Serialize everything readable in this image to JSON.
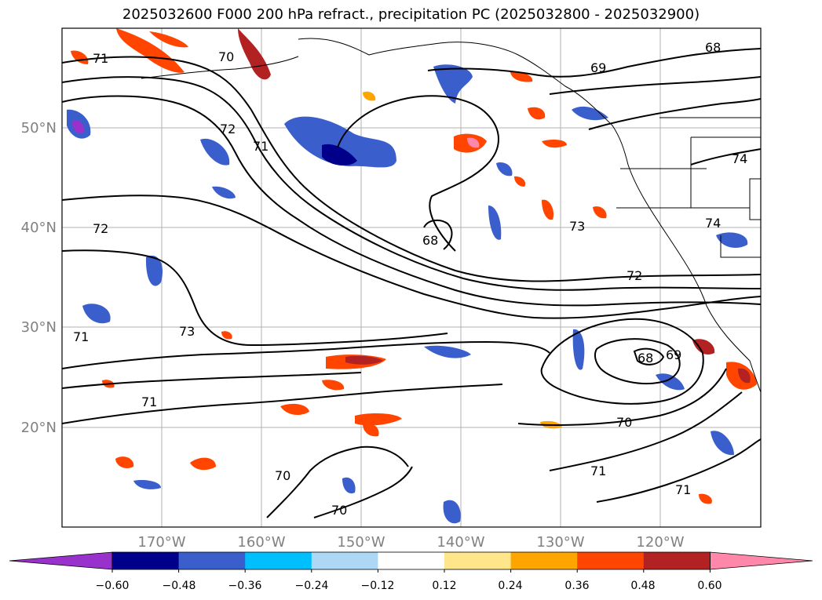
{
  "title": "2025032600 F000 200 hPa refract., precipitation PC (2025032800 - 2025032900)",
  "map": {
    "lat_ticks": [
      "50°N",
      "40°N",
      "30°N",
      "20°N"
    ],
    "lon_ticks": [
      "170°W",
      "160°W",
      "150°W",
      "140°W",
      "130°W",
      "120°W"
    ],
    "contour_labels": [
      "71",
      "70",
      "72",
      "71",
      "68",
      "69",
      "74",
      "72",
      "68",
      "73",
      "74",
      "72",
      "73",
      "71",
      "71",
      "68",
      "69",
      "70",
      "71",
      "70",
      "70",
      "71"
    ]
  },
  "colorbar": {
    "colors": [
      "#9932cc",
      "#00008b",
      "#3a5fcd",
      "#00bfff",
      "#add8f5",
      "#ffffff",
      "#ffe68a",
      "#ffa500",
      "#ff4500",
      "#b22222",
      "#ff88aa"
    ],
    "labels": [
      "−0.60",
      "−0.48",
      "−0.36",
      "−0.24",
      "−0.12",
      "0.12",
      "0.24",
      "0.36",
      "0.48",
      "0.60"
    ]
  }
}
